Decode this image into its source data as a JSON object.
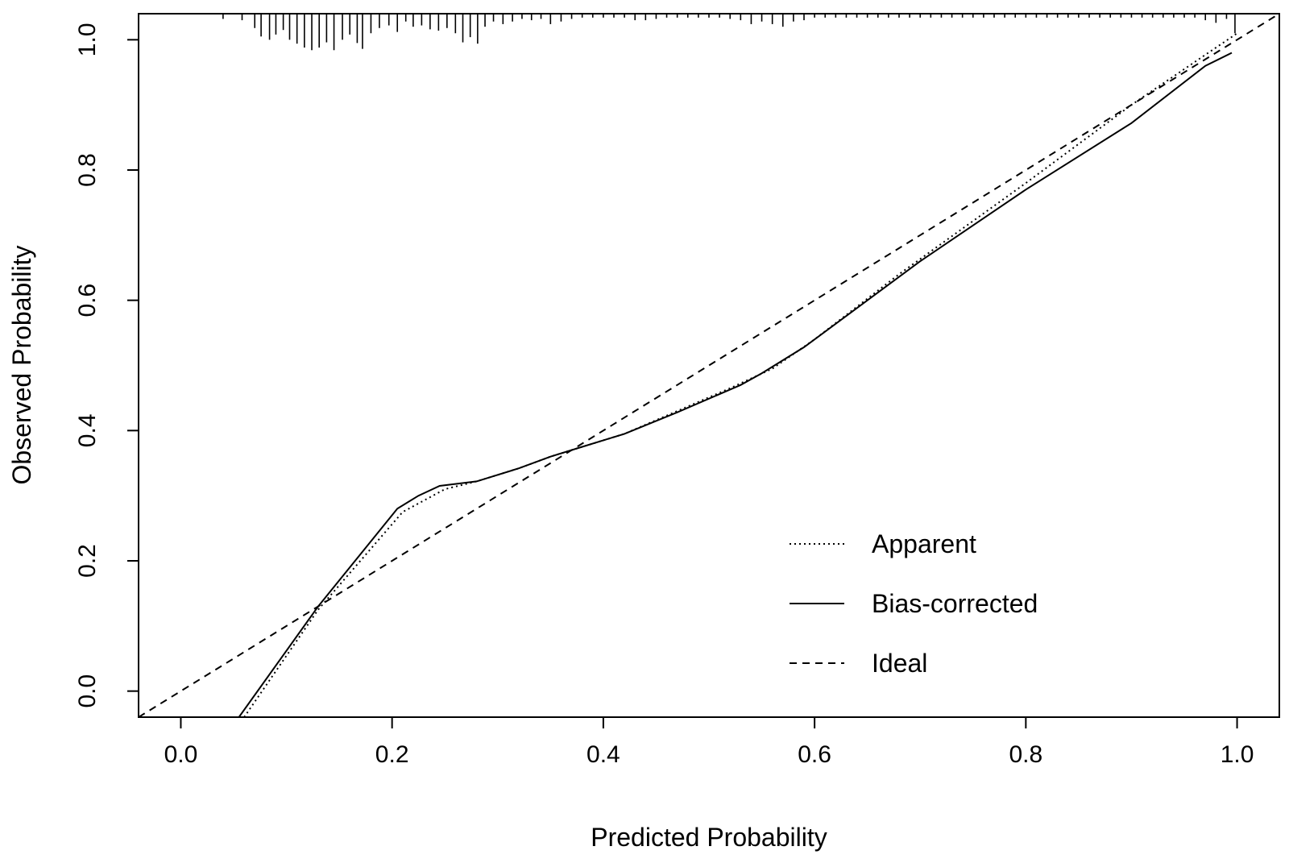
{
  "chart_data": {
    "type": "line",
    "title": "",
    "xlabel": "Predicted Probability",
    "ylabel": "Observed Probability",
    "xlim": [
      -0.04,
      1.04
    ],
    "ylim": [
      -0.04,
      1.04
    ],
    "x_ticks": [
      0.0,
      0.2,
      0.4,
      0.6,
      0.8,
      1.0
    ],
    "x_tick_labels": [
      "0.0",
      "0.2",
      "0.4",
      "0.6",
      "0.8",
      "1.0"
    ],
    "y_ticks": [
      0.0,
      0.2,
      0.4,
      0.6,
      0.8,
      1.0
    ],
    "y_tick_labels": [
      "0.0",
      "0.2",
      "0.4",
      "0.6",
      "0.8",
      "1.0"
    ],
    "grid": false,
    "legend_position": "bottom-right",
    "series": [
      {
        "name": "Apparent",
        "style": "dotted",
        "points": [
          [
            0.06,
            -0.04
          ],
          [
            0.13,
            0.125
          ],
          [
            0.21,
            0.275
          ],
          [
            0.25,
            0.31
          ],
          [
            0.28,
            0.322
          ],
          [
            0.32,
            0.342
          ],
          [
            0.35,
            0.36
          ],
          [
            0.38,
            0.375
          ],
          [
            0.42,
            0.395
          ],
          [
            0.47,
            0.43
          ],
          [
            0.52,
            0.465
          ],
          [
            0.56,
            0.495
          ],
          [
            0.6,
            0.54
          ],
          [
            0.68,
            0.64
          ],
          [
            0.8,
            0.78
          ],
          [
            0.9,
            0.9
          ],
          [
            1.0,
            1.01
          ]
        ]
      },
      {
        "name": "Bias-corrected",
        "style": "solid",
        "points": [
          [
            0.055,
            -0.04
          ],
          [
            0.13,
            0.13
          ],
          [
            0.205,
            0.28
          ],
          [
            0.225,
            0.3
          ],
          [
            0.245,
            0.315
          ],
          [
            0.28,
            0.322
          ],
          [
            0.32,
            0.342
          ],
          [
            0.35,
            0.36
          ],
          [
            0.38,
            0.375
          ],
          [
            0.42,
            0.395
          ],
          [
            0.47,
            0.428
          ],
          [
            0.53,
            0.47
          ],
          [
            0.55,
            0.488
          ],
          [
            0.59,
            0.528
          ],
          [
            0.65,
            0.6
          ],
          [
            0.7,
            0.66
          ],
          [
            0.8,
            0.77
          ],
          [
            0.9,
            0.872
          ],
          [
            0.97,
            0.96
          ],
          [
            0.995,
            0.98
          ]
        ]
      },
      {
        "name": "Ideal",
        "style": "dashed",
        "points": [
          [
            -0.04,
            -0.04
          ],
          [
            1.04,
            1.04
          ]
        ]
      }
    ],
    "rug": {
      "position": "top",
      "baseline_y": 1.04,
      "ticks": [
        [
          0.04,
          0.008
        ],
        [
          0.058,
          0.01
        ],
        [
          0.07,
          0.022
        ],
        [
          0.076,
          0.035
        ],
        [
          0.084,
          0.04
        ],
        [
          0.09,
          0.032
        ],
        [
          0.097,
          0.025
        ],
        [
          0.103,
          0.04
        ],
        [
          0.11,
          0.046
        ],
        [
          0.117,
          0.052
        ],
        [
          0.124,
          0.056
        ],
        [
          0.131,
          0.052
        ],
        [
          0.138,
          0.044
        ],
        [
          0.145,
          0.056
        ],
        [
          0.153,
          0.04
        ],
        [
          0.16,
          0.032
        ],
        [
          0.167,
          0.045
        ],
        [
          0.172,
          0.054
        ],
        [
          0.18,
          0.03
        ],
        [
          0.188,
          0.022
        ],
        [
          0.197,
          0.018
        ],
        [
          0.205,
          0.028
        ],
        [
          0.213,
          0.012
        ],
        [
          0.22,
          0.02
        ],
        [
          0.228,
          0.018
        ],
        [
          0.236,
          0.024
        ],
        [
          0.244,
          0.026
        ],
        [
          0.252,
          0.022
        ],
        [
          0.26,
          0.03
        ],
        [
          0.267,
          0.044
        ],
        [
          0.274,
          0.036
        ],
        [
          0.281,
          0.046
        ],
        [
          0.288,
          0.02
        ],
        [
          0.296,
          0.012
        ],
        [
          0.305,
          0.016
        ],
        [
          0.314,
          0.012
        ],
        [
          0.323,
          0.008
        ],
        [
          0.332,
          0.01
        ],
        [
          0.341,
          0.008
        ],
        [
          0.35,
          0.016
        ],
        [
          0.36,
          0.012
        ],
        [
          0.37,
          0.008
        ],
        [
          0.38,
          0.006
        ],
        [
          0.39,
          0.006
        ],
        [
          0.4,
          0.006
        ],
        [
          0.41,
          0.006
        ],
        [
          0.42,
          0.006
        ],
        [
          0.43,
          0.01
        ],
        [
          0.44,
          0.01
        ],
        [
          0.45,
          0.008
        ],
        [
          0.46,
          0.006
        ],
        [
          0.47,
          0.006
        ],
        [
          0.48,
          0.006
        ],
        [
          0.49,
          0.006
        ],
        [
          0.5,
          0.006
        ],
        [
          0.51,
          0.006
        ],
        [
          0.52,
          0.008
        ],
        [
          0.53,
          0.01
        ],
        [
          0.54,
          0.016
        ],
        [
          0.55,
          0.012
        ],
        [
          0.56,
          0.016
        ],
        [
          0.57,
          0.02
        ],
        [
          0.58,
          0.012
        ],
        [
          0.59,
          0.01
        ],
        [
          0.6,
          0.006
        ],
        [
          0.61,
          0.006
        ],
        [
          0.62,
          0.006
        ],
        [
          0.63,
          0.006
        ],
        [
          0.64,
          0.006
        ],
        [
          0.65,
          0.006
        ],
        [
          0.66,
          0.006
        ],
        [
          0.67,
          0.006
        ],
        [
          0.68,
          0.006
        ],
        [
          0.69,
          0.006
        ],
        [
          0.7,
          0.006
        ],
        [
          0.71,
          0.006
        ],
        [
          0.72,
          0.006
        ],
        [
          0.73,
          0.006
        ],
        [
          0.74,
          0.006
        ],
        [
          0.75,
          0.006
        ],
        [
          0.76,
          0.006
        ],
        [
          0.77,
          0.006
        ],
        [
          0.78,
          0.006
        ],
        [
          0.79,
          0.006
        ],
        [
          0.8,
          0.006
        ],
        [
          0.81,
          0.006
        ],
        [
          0.82,
          0.006
        ],
        [
          0.83,
          0.006
        ],
        [
          0.84,
          0.006
        ],
        [
          0.85,
          0.006
        ],
        [
          0.86,
          0.006
        ],
        [
          0.87,
          0.006
        ],
        [
          0.88,
          0.006
        ],
        [
          0.89,
          0.006
        ],
        [
          0.9,
          0.006
        ],
        [
          0.91,
          0.006
        ],
        [
          0.92,
          0.006
        ],
        [
          0.93,
          0.006
        ],
        [
          0.94,
          0.006
        ],
        [
          0.95,
          0.006
        ],
        [
          0.96,
          0.006
        ],
        [
          0.97,
          0.01
        ],
        [
          0.98,
          0.014
        ],
        [
          0.99,
          0.008
        ],
        [
          0.998,
          0.03
        ]
      ]
    }
  }
}
